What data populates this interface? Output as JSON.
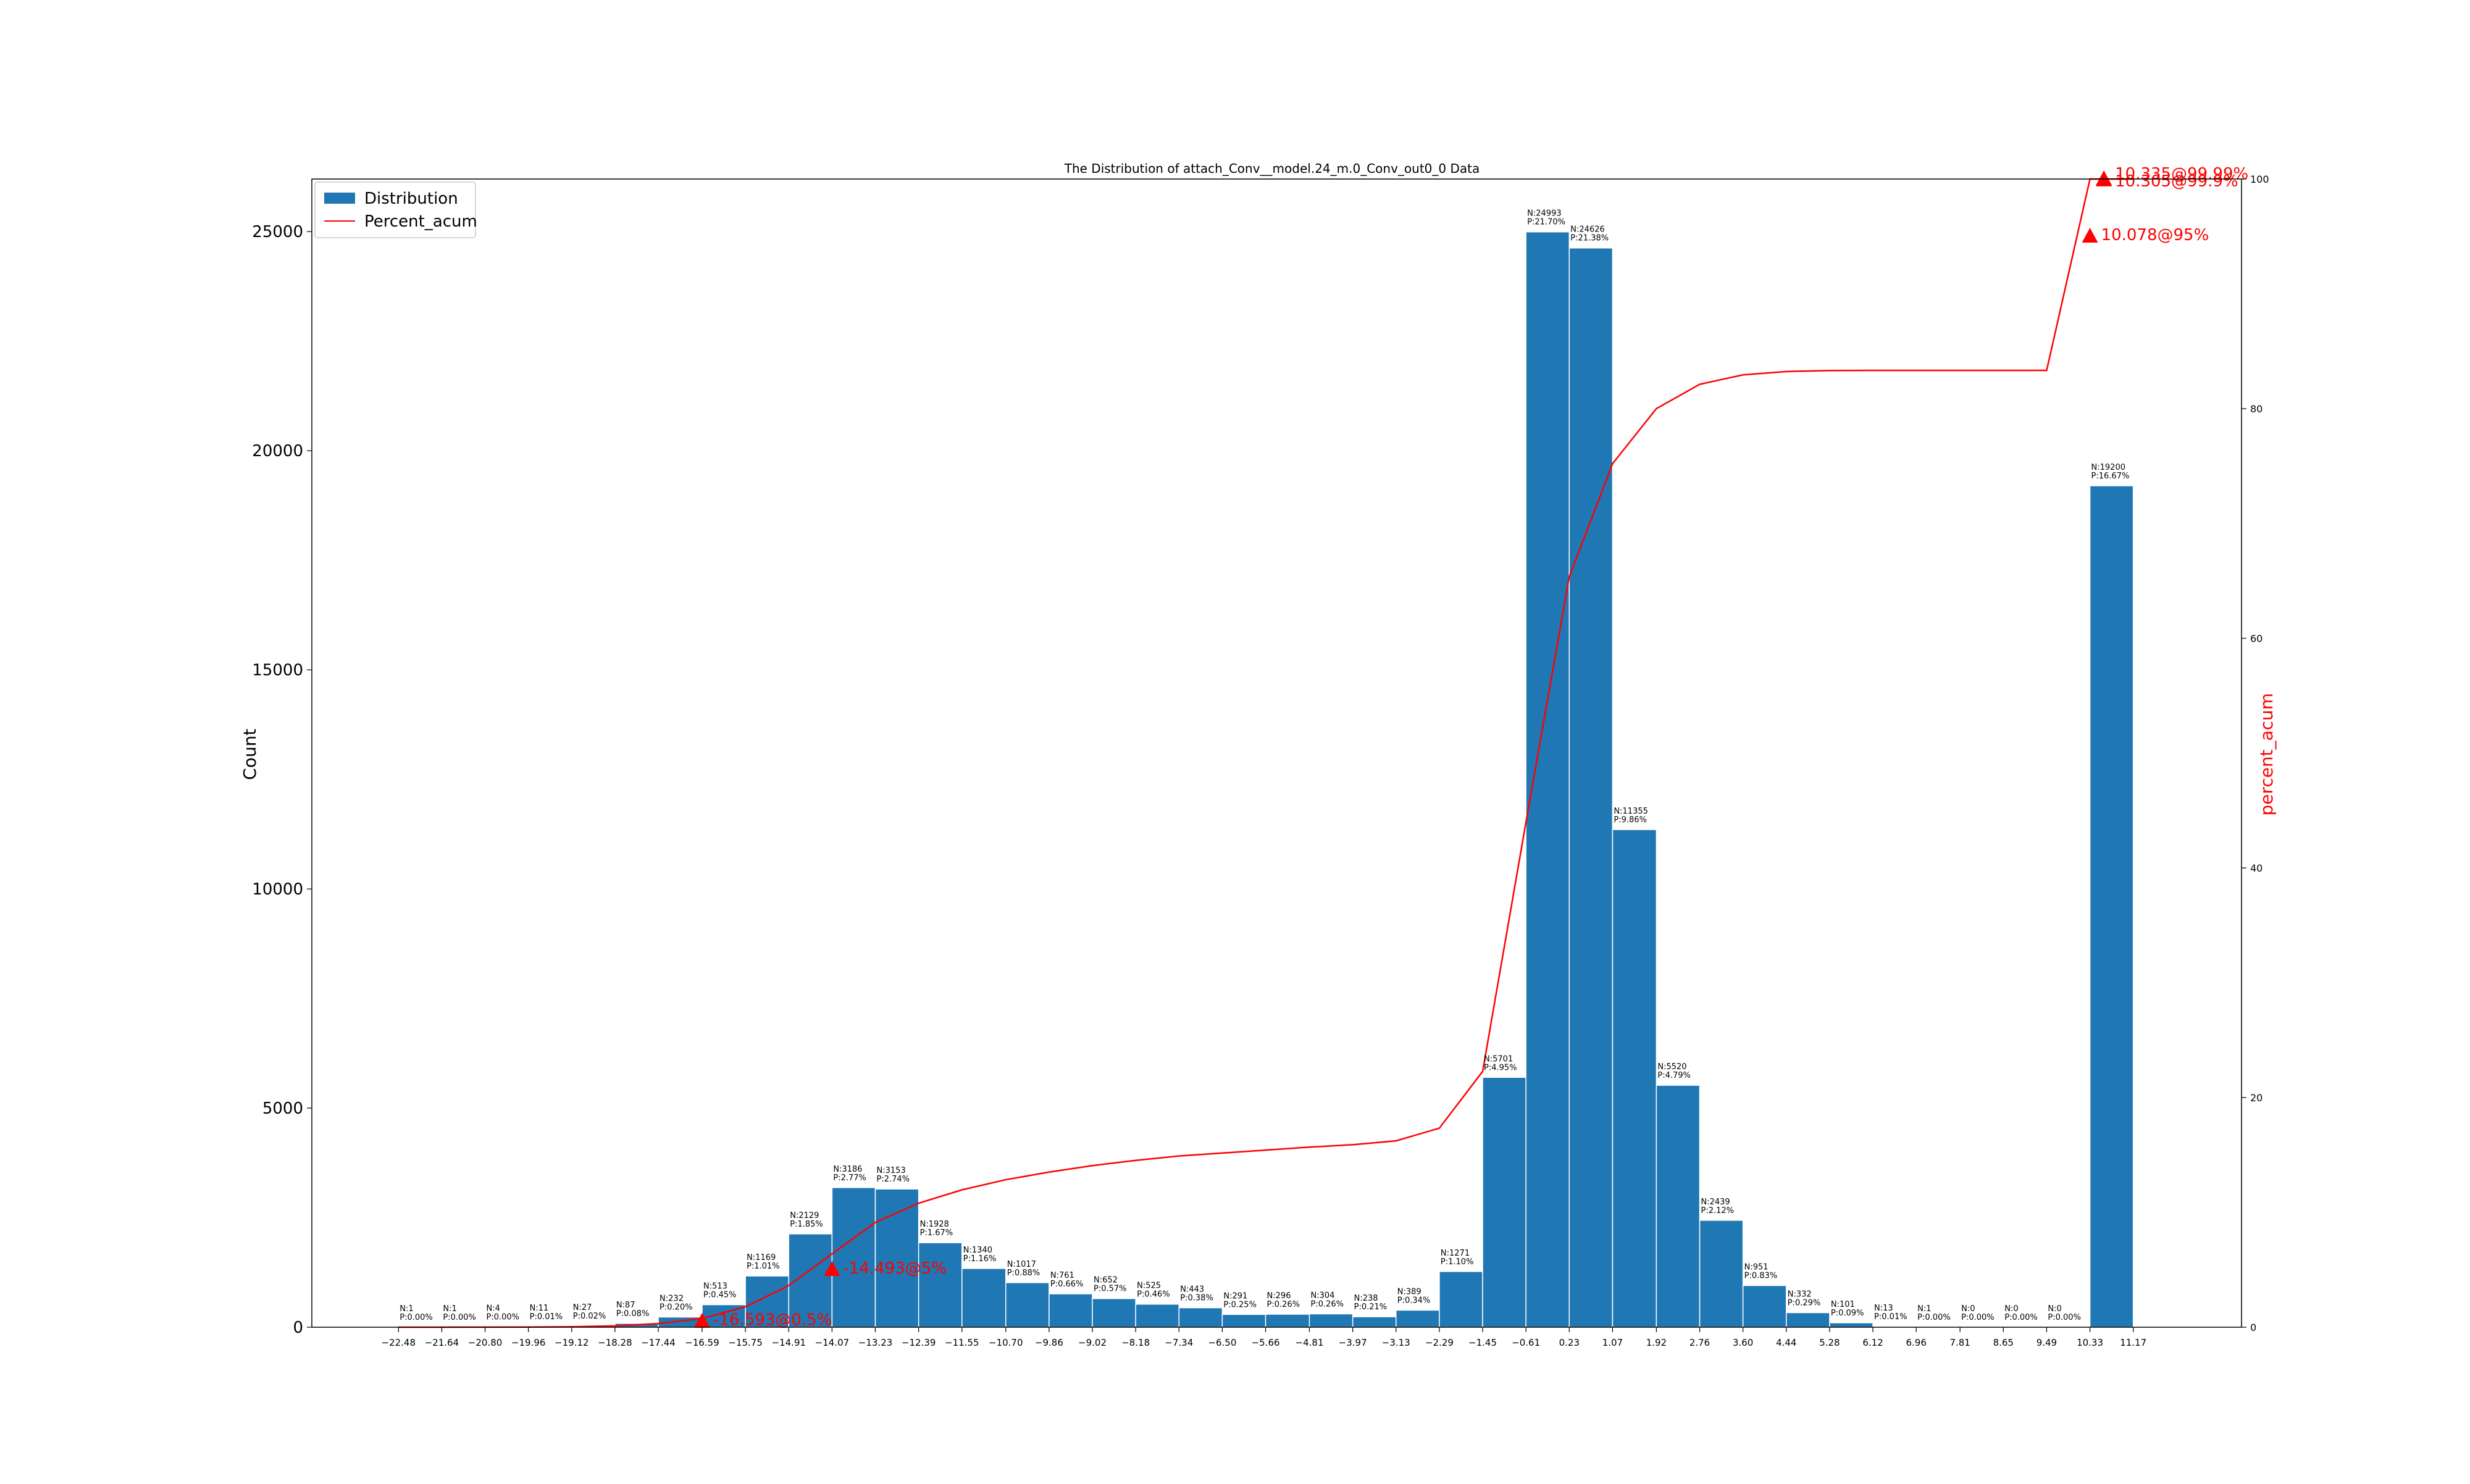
{
  "chart_data": {
    "type": "bar",
    "title": "The Distribution of attach_Conv__model.24_m.0_Conv_out0_0 Data",
    "ylabel": "Count",
    "y2label": "percent_acum",
    "ylim": [
      0,
      26200
    ],
    "y2lim": [
      0,
      100
    ],
    "yticks": [
      0,
      5000,
      10000,
      15000,
      20000,
      25000
    ],
    "y2ticks": [
      0,
      20,
      40,
      60,
      80,
      100
    ],
    "grid": false,
    "legend_position": "top-left",
    "colors": {
      "bar": "#1f77b4",
      "line": "#ff0000",
      "marker": "#ff0000"
    },
    "legend": {
      "bars": "Distribution",
      "line": "Percent_acum"
    },
    "xticks": [
      "−22.48",
      "−21.64",
      "−20.80",
      "−19.96",
      "−19.12",
      "−18.28",
      "−17.44",
      "−16.59",
      "−15.75",
      "−14.91",
      "−14.07",
      "−13.23",
      "−12.39",
      "−11.55",
      "−10.70",
      "−9.86",
      "−9.02",
      "−8.18",
      "−7.34",
      "−6.50",
      "−5.66",
      "−4.81",
      "−3.97",
      "−3.13",
      "−2.29",
      "−1.45",
      "−0.61",
      "0.23",
      "1.07",
      "1.92",
      "2.76",
      "3.60",
      "4.44",
      "5.28",
      "6.12",
      "6.96",
      "7.81",
      "8.65",
      "9.49",
      "10.33",
      "11.17"
    ],
    "bins": [
      {
        "n": 1,
        "p": "0.00%"
      },
      {
        "n": 1,
        "p": "0.00%"
      },
      {
        "n": 4,
        "p": "0.00%"
      },
      {
        "n": 11,
        "p": "0.01%"
      },
      {
        "n": 27,
        "p": "0.02%"
      },
      {
        "n": 87,
        "p": "0.08%"
      },
      {
        "n": 232,
        "p": "0.20%"
      },
      {
        "n": 513,
        "p": "0.45%"
      },
      {
        "n": 1169,
        "p": "1.01%"
      },
      {
        "n": 2129,
        "p": "1.85%"
      },
      {
        "n": 3186,
        "p": "2.77%"
      },
      {
        "n": 3153,
        "p": "2.74%"
      },
      {
        "n": 1928,
        "p": "1.67%"
      },
      {
        "n": 1340,
        "p": "1.16%"
      },
      {
        "n": 1017,
        "p": "0.88%"
      },
      {
        "n": 761,
        "p": "0.66%"
      },
      {
        "n": 652,
        "p": "0.57%"
      },
      {
        "n": 525,
        "p": "0.46%"
      },
      {
        "n": 443,
        "p": "0.38%"
      },
      {
        "n": 291,
        "p": "0.25%"
      },
      {
        "n": 296,
        "p": "0.26%"
      },
      {
        "n": 304,
        "p": "0.26%"
      },
      {
        "n": 238,
        "p": "0.21%"
      },
      {
        "n": 389,
        "p": "0.34%"
      },
      {
        "n": 1271,
        "p": "1.10%"
      },
      {
        "n": 5701,
        "p": "4.95%"
      },
      {
        "n": 24993,
        "p": "21.70%"
      },
      {
        "n": 24626,
        "p": "21.38%"
      },
      {
        "n": 11355,
        "p": "9.86%"
      },
      {
        "n": 5520,
        "p": "4.79%"
      },
      {
        "n": 2439,
        "p": "2.12%"
      },
      {
        "n": 951,
        "p": "0.83%"
      },
      {
        "n": 332,
        "p": "0.29%"
      },
      {
        "n": 101,
        "p": "0.09%"
      },
      {
        "n": 13,
        "p": "0.01%"
      },
      {
        "n": 1,
        "p": "0.00%"
      },
      {
        "n": 0,
        "p": "0.00%"
      },
      {
        "n": 0,
        "p": "0.00%"
      },
      {
        "n": 0,
        "p": "0.00%"
      },
      {
        "n": 19200,
        "p": "16.67%"
      }
    ],
    "annotations": [
      {
        "x": -16.59,
        "y": 0.5,
        "label": "-16.593@0.5%"
      },
      {
        "x": -14.07,
        "y": 5,
        "label": "-14.493@5%"
      },
      {
        "x": 10.33,
        "y": 95,
        "label": "10.078@95%"
      },
      {
        "x": 10.6,
        "y": 99.9,
        "label": "10.305@99.9%"
      },
      {
        "x": 10.6,
        "y": 99.99,
        "label": "10.335@99.99%"
      }
    ]
  }
}
